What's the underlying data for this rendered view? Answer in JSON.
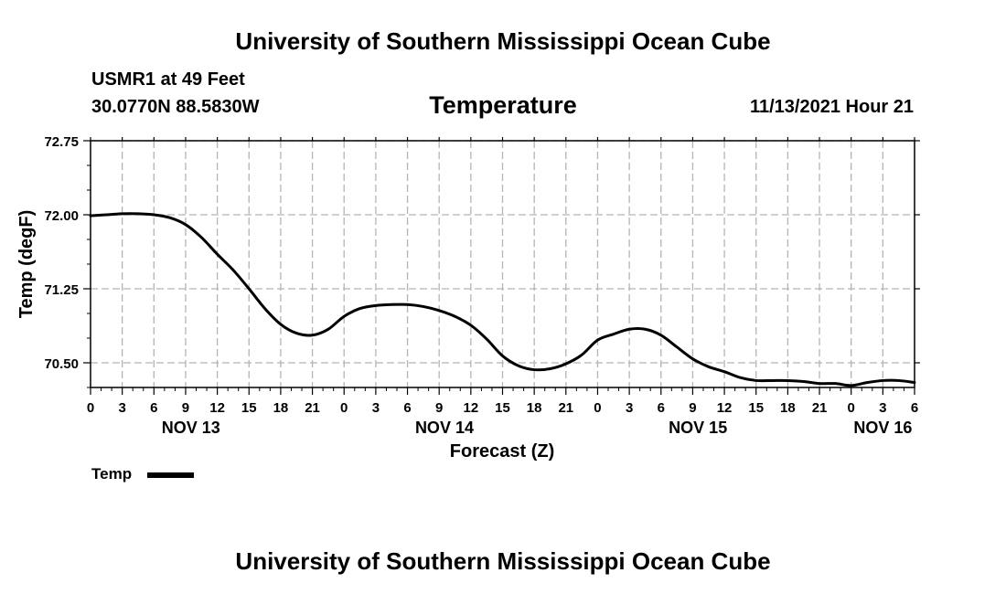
{
  "header": {
    "top_title": "University of Southern Mississippi Ocean Cube",
    "station": "USMR1 at 49 Feet",
    "coords": "30.0770N  88.5830W",
    "chart_title": "Temperature",
    "datetime": "11/13/2021 Hour 21"
  },
  "footer": {
    "bottom_title": "University of Southern Mississippi Ocean Cube"
  },
  "colors": {
    "line": "#000000",
    "grid": "#b4b4b4"
  },
  "chart_data": {
    "type": "line",
    "title": "Temperature",
    "xlabel": "Forecast (Z)",
    "ylabel": "Temp (degF)",
    "ylim": [
      70.25,
      72.75
    ],
    "xlim": [
      0,
      78
    ],
    "yticks": [
      70.5,
      71.25,
      72.0,
      72.75
    ],
    "ytick_labels": [
      "70.50",
      "71.25",
      "72.00",
      "72.75"
    ],
    "xticks": [
      0,
      3,
      6,
      9,
      12,
      15,
      18,
      21,
      24,
      27,
      30,
      33,
      36,
      39,
      42,
      45,
      48,
      51,
      54,
      57,
      60,
      63,
      66,
      69,
      72,
      75,
      78
    ],
    "xtick_labels": [
      "0",
      "3",
      "6",
      "9",
      "12",
      "15",
      "18",
      "21",
      "0",
      "3",
      "6",
      "9",
      "12",
      "15",
      "18",
      "21",
      "0",
      "3",
      "6",
      "9",
      "12",
      "15",
      "18",
      "21",
      "0",
      "3",
      "6"
    ],
    "date_labels": [
      {
        "x": 9.5,
        "label": "NOV 13"
      },
      {
        "x": 33.5,
        "label": "NOV 14"
      },
      {
        "x": 57.5,
        "label": "NOV 15"
      },
      {
        "x": 75,
        "label": "NOV 16"
      }
    ],
    "grid": true,
    "legend": {
      "position": "bottom-left",
      "entries": [
        "Temp"
      ]
    },
    "series": [
      {
        "name": "Temp",
        "x": [
          0,
          1.5,
          3,
          4.5,
          6,
          7.5,
          9,
          10.5,
          12,
          13.5,
          15,
          16.5,
          18,
          19.5,
          21,
          22.5,
          24,
          25.5,
          27,
          28.5,
          30,
          31.5,
          33,
          34.5,
          36,
          37.5,
          39,
          40.5,
          42,
          43.5,
          45,
          46.5,
          48,
          49.5,
          51,
          52.5,
          54,
          55.5,
          57,
          58.5,
          60,
          61.5,
          63,
          64.5,
          66,
          67.5,
          69,
          70.5,
          72,
          73.5,
          75,
          76.5,
          78
        ],
        "values": [
          71.99,
          72.0,
          72.01,
          72.01,
          72.0,
          71.97,
          71.9,
          71.77,
          71.6,
          71.44,
          71.25,
          71.05,
          70.89,
          70.8,
          70.78,
          70.84,
          70.97,
          71.05,
          71.08,
          71.09,
          71.09,
          71.07,
          71.03,
          70.97,
          70.88,
          70.74,
          70.57,
          70.47,
          70.43,
          70.44,
          70.49,
          70.58,
          70.73,
          70.79,
          70.84,
          70.84,
          70.78,
          70.66,
          70.54,
          70.46,
          70.41,
          70.35,
          70.32,
          70.32,
          70.32,
          70.31,
          70.29,
          70.29,
          70.27,
          70.3,
          70.32,
          70.32,
          70.3
        ]
      }
    ]
  }
}
